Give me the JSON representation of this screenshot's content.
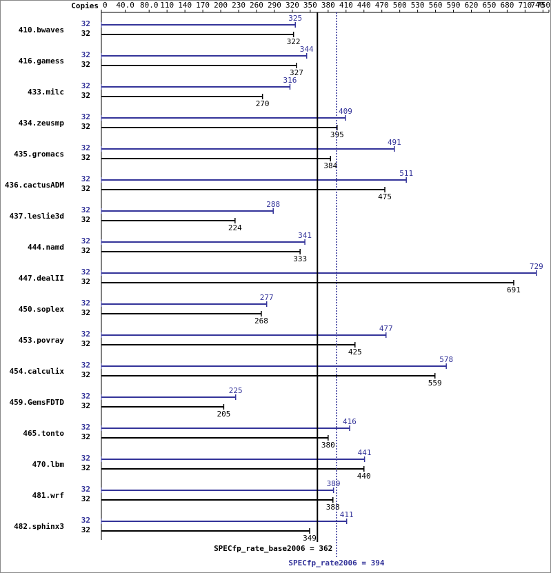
{
  "chart_data": {
    "type": "bar",
    "orientation": "horizontal",
    "axis_label": "Copies",
    "categories": [
      "410.bwaves",
      "416.gamess",
      "433.milc",
      "434.zeusmp",
      "435.gromacs",
      "436.cactusADM",
      "437.leslie3d",
      "444.namd",
      "447.dealII",
      "450.soplex",
      "453.povray",
      "454.calculix",
      "459.GemsFDTD",
      "465.tonto",
      "470.lbm",
      "481.wrf",
      "482.sphinx3"
    ],
    "series": [
      {
        "color": "#333399",
        "copies": [
          32,
          32,
          32,
          32,
          32,
          32,
          32,
          32,
          32,
          32,
          32,
          32,
          32,
          32,
          32,
          32,
          32
        ],
        "values": [
          325,
          344,
          316,
          409,
          491,
          511,
          288,
          341,
          729,
          277,
          477,
          578,
          225,
          416,
          441,
          389,
          411
        ]
      },
      {
        "color": "#000000",
        "copies": [
          32,
          32,
          32,
          32,
          32,
          32,
          32,
          32,
          32,
          32,
          32,
          32,
          32,
          32,
          32,
          32,
          32
        ],
        "values": [
          322,
          327,
          270,
          395,
          384,
          475,
          224,
          333,
          691,
          268,
          425,
          559,
          205,
          380,
          440,
          388,
          349
        ]
      }
    ],
    "xlim": [
      0,
      750
    ],
    "xticks": [
      0,
      {
        "value": 40,
        "label": "40.0"
      },
      {
        "value": 80,
        "label": "80.0"
      },
      110,
      140,
      170,
      200,
      230,
      260,
      290,
      320,
      350,
      380,
      410,
      440,
      470,
      500,
      530,
      560,
      590,
      620,
      650,
      680,
      710,
      740,
      750
    ],
    "reference_lines": [
      {
        "label": "SPECfp_rate_base2006 = 362",
        "value": 362,
        "color": "#000000",
        "style": "solid"
      },
      {
        "label": "SPECfp_rate2006 = 394",
        "value": 394,
        "color": "#333399",
        "style": "dotted"
      }
    ]
  }
}
